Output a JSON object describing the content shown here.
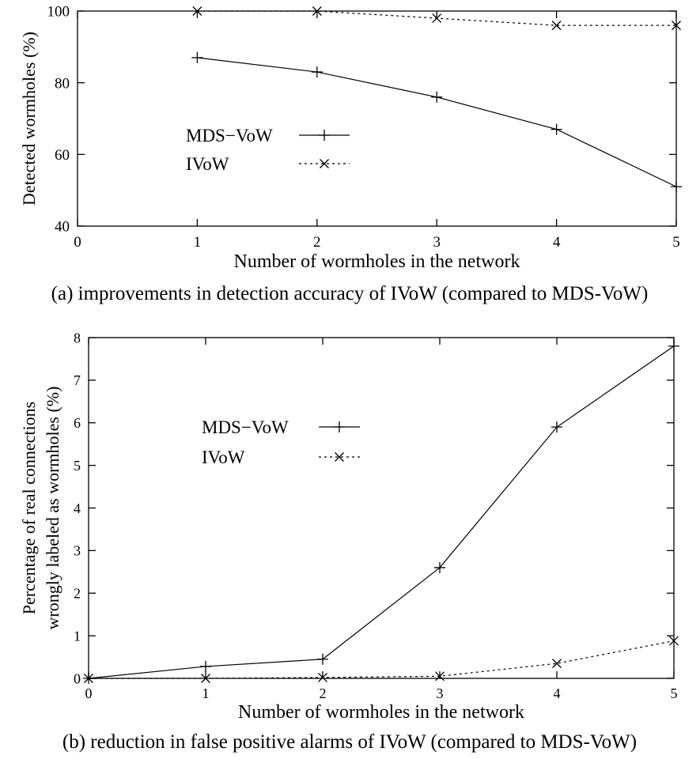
{
  "chart_data": [
    {
      "type": "line",
      "caption": "(a) improvements in detection accuracy of IVoW (compared to MDS-VoW)",
      "xlabel": "Number of wormholes in the network",
      "ylabel": "Detected wormholes (%)",
      "xlim": [
        0,
        5
      ],
      "ylim": [
        40,
        100
      ],
      "xticks": [
        0,
        1,
        2,
        3,
        4,
        5
      ],
      "yticks": [
        40,
        60,
        80,
        100
      ],
      "grid": false,
      "legend_position": "center-left",
      "series": [
        {
          "name": "MDS−VoW",
          "style": "solid",
          "marker": "plus",
          "x": [
            1,
            2,
            3,
            4,
            5
          ],
          "y": [
            87,
            83,
            76,
            67,
            51
          ]
        },
        {
          "name": "IVoW",
          "style": "dotted",
          "marker": "cross",
          "x": [
            1,
            2,
            3,
            4,
            5
          ],
          "y": [
            100,
            100,
            98,
            96,
            96
          ]
        }
      ]
    },
    {
      "type": "line",
      "caption": "(b) reduction in false positive alarms of IVoW (compared to MDS-VoW)",
      "xlabel": "Number of wormholes in the network",
      "ylabel_lines": [
        "Percentage of real connections",
        "wrongly labeled as wormholes (%)"
      ],
      "xlim": [
        0,
        5
      ],
      "ylim": [
        0,
        8
      ],
      "xticks": [
        0,
        1,
        2,
        3,
        4,
        5
      ],
      "yticks": [
        0,
        1,
        2,
        3,
        4,
        5,
        6,
        7,
        8
      ],
      "grid": false,
      "legend_position": "center-left",
      "series": [
        {
          "name": "MDS−VoW",
          "style": "solid",
          "marker": "plus",
          "x": [
            0,
            1,
            2,
            3,
            4,
            5
          ],
          "y": [
            0,
            0.28,
            0.45,
            2.6,
            5.9,
            7.8
          ]
        },
        {
          "name": "IVoW",
          "style": "dotted",
          "marker": "cross",
          "x": [
            0,
            1,
            2,
            3,
            4,
            5
          ],
          "y": [
            0,
            0,
            0.02,
            0.05,
            0.35,
            0.88
          ]
        }
      ]
    }
  ]
}
